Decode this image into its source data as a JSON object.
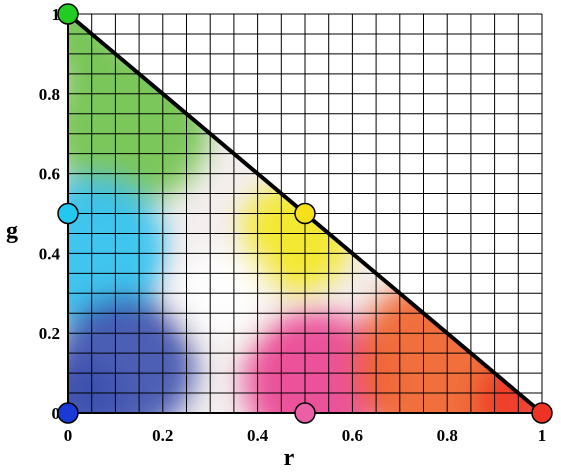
{
  "chart_data": {
    "type": "scatter",
    "xlabel": "r",
    "ylabel": "g",
    "xlim": [
      0,
      1
    ],
    "ylim": [
      0,
      1
    ],
    "grid": true,
    "grid_step": 0.05,
    "x_ticks": [
      "0",
      "0.2",
      "0.4",
      "0.6",
      "0.8",
      "1"
    ],
    "y_ticks": [
      "0",
      "0.2",
      "0.4",
      "0.6",
      "0.8",
      "1"
    ],
    "boundary_line": {
      "x": [
        0,
        1
      ],
      "y": [
        1,
        0
      ]
    },
    "points": [
      {
        "x": 0,
        "y": 1,
        "color": "#22cc22"
      },
      {
        "x": 0,
        "y": 0.5,
        "color": "#22c8f0"
      },
      {
        "x": 0.5,
        "y": 0.5,
        "color": "#f5e01a"
      },
      {
        "x": 0,
        "y": 0,
        "color": "#1a3ad6"
      },
      {
        "x": 0.5,
        "y": 0,
        "color": "#ea5fa6"
      },
      {
        "x": 1,
        "y": 0,
        "color": "#ee3322"
      }
    ],
    "colors": {
      "red": "#ee3322",
      "green": "#6fc24a",
      "blue": "#3a4fae",
      "cyan": "#2cc0ee",
      "yellow": "#f3e81e",
      "magenta": "#ea4090",
      "orange": "#f0602a",
      "white": "#ffffff"
    }
  }
}
